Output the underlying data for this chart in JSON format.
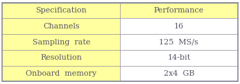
{
  "headers": [
    "Specification",
    "Performance"
  ],
  "rows": [
    [
      "Channels",
      "16"
    ],
    [
      "Sampling  rate",
      "125  MS/s"
    ],
    [
      "Resolution",
      "14-bit"
    ],
    [
      "Onboard  memory",
      "2x4  GB"
    ]
  ],
  "header_bg": "#FFFFA0",
  "row_left_bg": "#FFFFA0",
  "row_right_bg": "#FFFFFF",
  "border_color": "#888899",
  "text_color": "#555566",
  "font_size": 8.0,
  "fig_width": 3.46,
  "fig_height": 1.21,
  "dpi": 100
}
